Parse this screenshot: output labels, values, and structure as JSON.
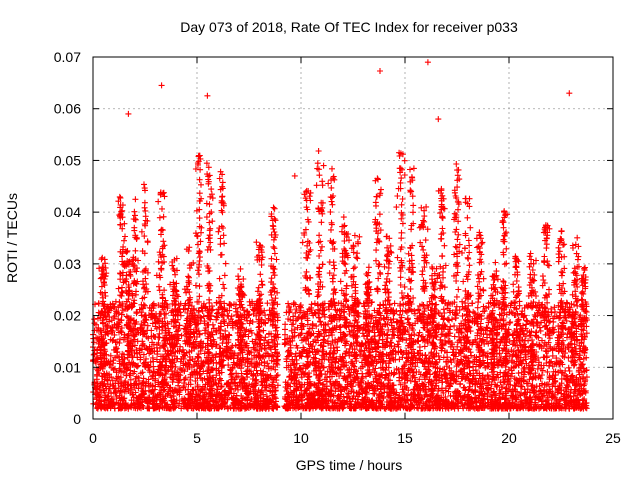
{
  "chart_data": {
    "type": "scatter",
    "title": "Day 073 of 2018, Rate Of TEC Index for receiver p033",
    "xlabel": "GPS time / hours",
    "ylabel": "ROTI / TECUs",
    "xlim": [
      0,
      25
    ],
    "ylim": [
      0,
      0.07
    ],
    "xticks": [
      0,
      5,
      10,
      15,
      20,
      25
    ],
    "yticks": [
      0,
      0.01,
      0.02,
      0.03,
      0.04,
      0.05,
      0.06,
      0.07
    ],
    "xtick_labels": [
      "0",
      "5",
      "10",
      "15",
      "20",
      "25"
    ],
    "ytick_labels": [
      "0",
      "0.01",
      "0.02",
      "0.03",
      "0.04",
      "0.05",
      "0.06",
      "0.07"
    ],
    "grid": true,
    "marker": "plus",
    "color": "#ff0000",
    "series": [
      {
        "x_range": [
          0.0,
          23.75
        ],
        "data_gap": [
          8.9,
          9.2
        ],
        "baseline_band": [
          0.002,
          0.02
        ],
        "notable_points": [
          {
            "x": 13.8,
            "y": 0.0673
          },
          {
            "x": 16.1,
            "y": 0.069
          },
          {
            "x": 22.9,
            "y": 0.063
          },
          {
            "x": 3.3,
            "y": 0.0645
          },
          {
            "x": 5.5,
            "y": 0.0625
          },
          {
            "x": 1.7,
            "y": 0.059
          },
          {
            "x": 16.6,
            "y": 0.058
          },
          {
            "x": 9.7,
            "y": 0.047
          }
        ]
      }
    ]
  }
}
